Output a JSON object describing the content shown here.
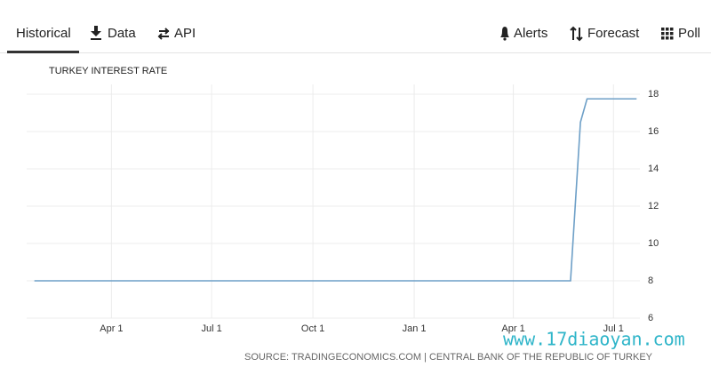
{
  "tabs_left": [
    "Historical",
    "Data",
    "API"
  ],
  "tabs_right": [
    "Alerts",
    "Forecast",
    "Poll"
  ],
  "chart_data": {
    "type": "line",
    "title": "TURKEY INTEREST RATE",
    "x": [
      -70,
      417,
      426,
      432,
      477
    ],
    "values": [
      8,
      8,
      16.5,
      17.75,
      17.75
    ],
    "color": "#6d9fc7",
    "xlim": [
      -77,
      480
    ],
    "xticks": [
      {
        "value": 0,
        "label": "Apr 1"
      },
      {
        "value": 91,
        "label": "Jul 1"
      },
      {
        "value": 183,
        "label": "Oct 1"
      },
      {
        "value": 275,
        "label": "Jan 1"
      },
      {
        "value": 365,
        "label": "Apr 1"
      },
      {
        "value": 456,
        "label": "Jul 1"
      }
    ],
    "ylim": [
      6,
      18
    ],
    "yticks": [
      6,
      8,
      10,
      12,
      14,
      16,
      18
    ],
    "grid": true,
    "source": "SOURCE: TRADINGECONOMICS.COM | CENTRAL BANK OF THE REPUBLIC OF TURKEY"
  },
  "watermark": "www.17diaoyan.com"
}
